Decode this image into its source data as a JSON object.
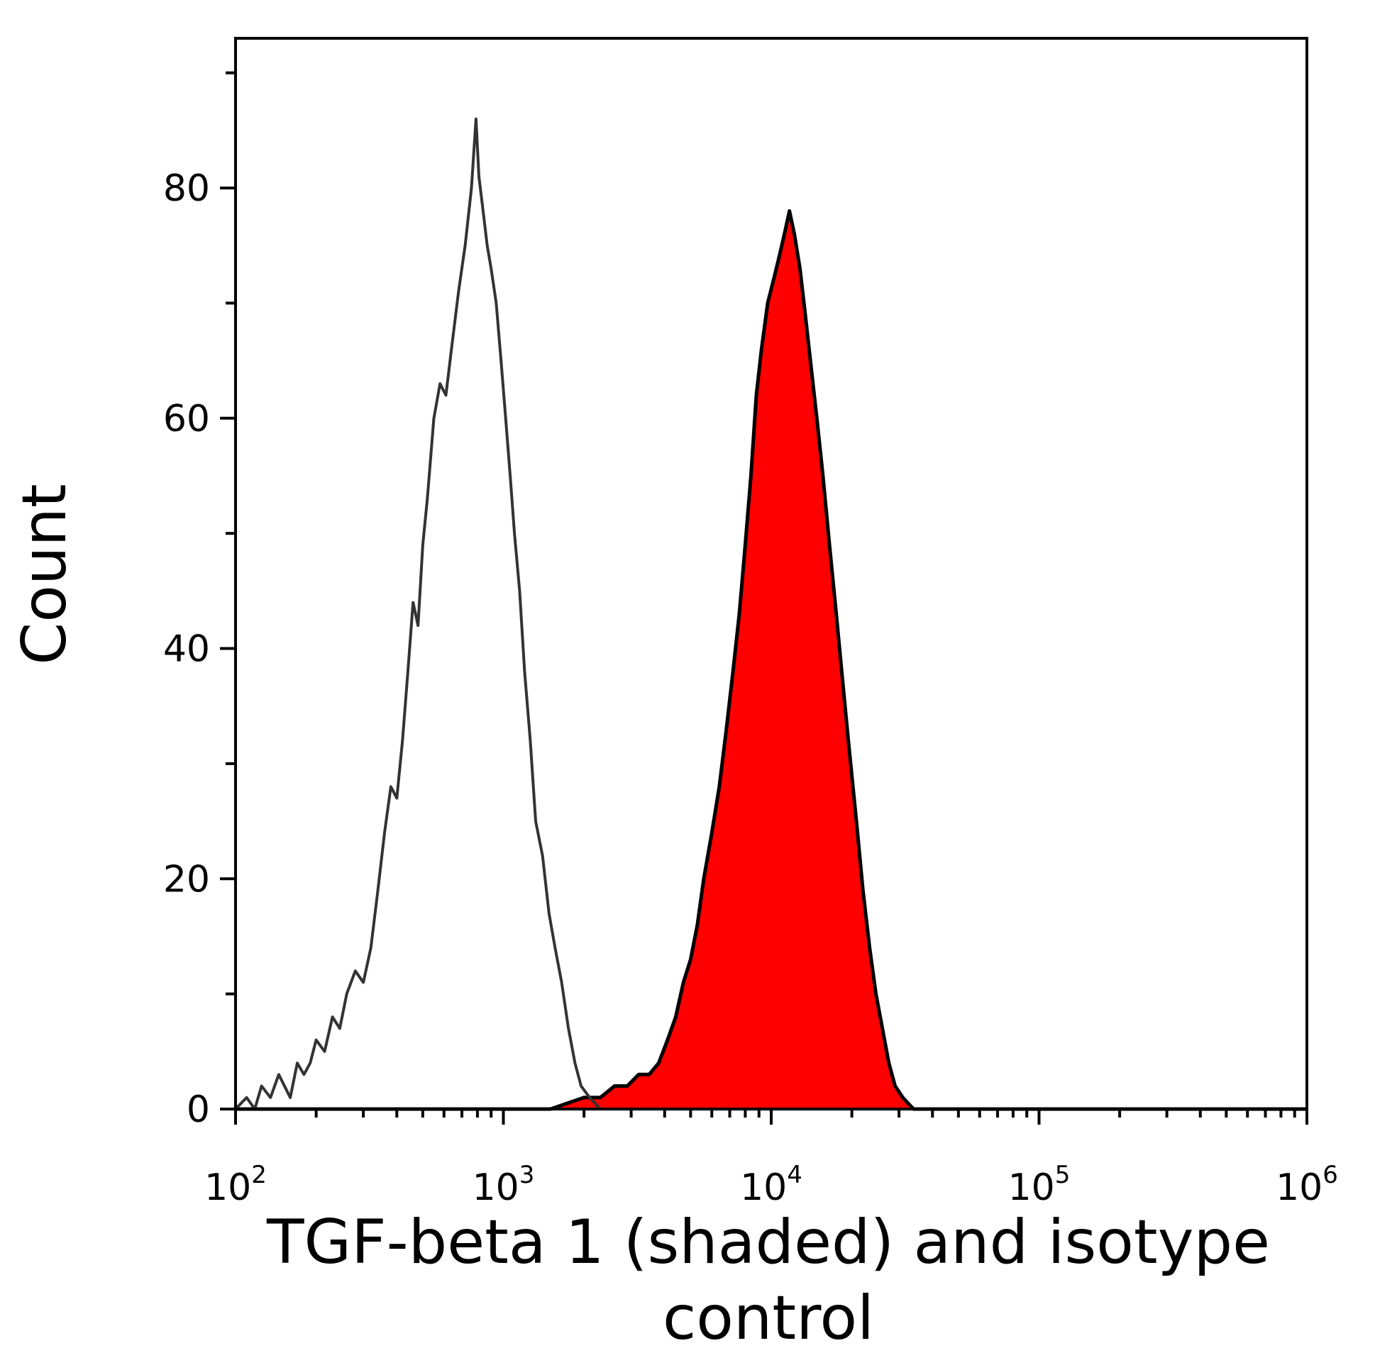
{
  "chart_data": {
    "type": "area",
    "title": "",
    "xlabel_lines": [
      "TGF-beta 1 (shaded) and isotype",
      "control"
    ],
    "ylabel": "Count",
    "x_scale": "log10",
    "xlim": [
      100,
      1000000
    ],
    "ylim": [
      0,
      93
    ],
    "x_ticks": [
      {
        "base": "10",
        "exp": "2"
      },
      {
        "base": "10",
        "exp": "3"
      },
      {
        "base": "10",
        "exp": "4"
      },
      {
        "base": "10",
        "exp": "5"
      },
      {
        "base": "10",
        "exp": "6"
      }
    ],
    "y_ticks": [
      {
        "value": 0,
        "label": "0"
      },
      {
        "value": 20,
        "label": "20"
      },
      {
        "value": 40,
        "label": "40"
      },
      {
        "value": 60,
        "label": "60"
      },
      {
        "value": 80,
        "label": "80"
      }
    ],
    "grid": false,
    "legend": "none",
    "series": [
      {
        "role": "isotype control (unshaded outline)",
        "style": "line",
        "color": "#333333",
        "points": [
          [
            100,
            0
          ],
          [
            110,
            1
          ],
          [
            118,
            0
          ],
          [
            125,
            2
          ],
          [
            135,
            1
          ],
          [
            145,
            3
          ],
          [
            160,
            1
          ],
          [
            170,
            4
          ],
          [
            180,
            3
          ],
          [
            190,
            4
          ],
          [
            200,
            6
          ],
          [
            215,
            5
          ],
          [
            230,
            8
          ],
          [
            245,
            7
          ],
          [
            260,
            10
          ],
          [
            280,
            12
          ],
          [
            300,
            11
          ],
          [
            320,
            14
          ],
          [
            340,
            19
          ],
          [
            360,
            24
          ],
          [
            380,
            28
          ],
          [
            400,
            27
          ],
          [
            420,
            32
          ],
          [
            440,
            38
          ],
          [
            460,
            44
          ],
          [
            480,
            42
          ],
          [
            500,
            49
          ],
          [
            520,
            53
          ],
          [
            550,
            60
          ],
          [
            580,
            63
          ],
          [
            610,
            62
          ],
          [
            640,
            66
          ],
          [
            680,
            71
          ],
          [
            720,
            75
          ],
          [
            760,
            80
          ],
          [
            790,
            86
          ],
          [
            810,
            81
          ],
          [
            840,
            78
          ],
          [
            870,
            75
          ],
          [
            900,
            73
          ],
          [
            940,
            70
          ],
          [
            980,
            65
          ],
          [
            1020,
            60
          ],
          [
            1060,
            55
          ],
          [
            1100,
            50
          ],
          [
            1150,
            45
          ],
          [
            1200,
            38
          ],
          [
            1260,
            32
          ],
          [
            1320,
            25
          ],
          [
            1400,
            22
          ],
          [
            1480,
            17
          ],
          [
            1560,
            14
          ],
          [
            1650,
            11
          ],
          [
            1750,
            7
          ],
          [
            1850,
            4
          ],
          [
            1950,
            2
          ],
          [
            2100,
            1
          ],
          [
            2300,
            0
          ],
          [
            3000,
            0
          ],
          [
            5000,
            0
          ],
          [
            8000,
            0
          ],
          [
            12000,
            0
          ],
          [
            20000,
            0
          ],
          [
            40000,
            0
          ],
          [
            100000,
            0
          ],
          [
            1000000,
            0
          ]
        ]
      },
      {
        "role": "TGF-beta 1 (shaded)",
        "style": "filled",
        "fill": "#ff0000",
        "color": "#000000",
        "points": [
          [
            100,
            0
          ],
          [
            500,
            0
          ],
          [
            1000,
            0
          ],
          [
            1500,
            0
          ],
          [
            2000,
            1
          ],
          [
            2300,
            1
          ],
          [
            2600,
            2
          ],
          [
            2900,
            2
          ],
          [
            3200,
            3
          ],
          [
            3500,
            3
          ],
          [
            3800,
            4
          ],
          [
            4100,
            6
          ],
          [
            4400,
            8
          ],
          [
            4700,
            11
          ],
          [
            5000,
            13
          ],
          [
            5300,
            16
          ],
          [
            5600,
            20
          ],
          [
            6000,
            24
          ],
          [
            6400,
            28
          ],
          [
            6800,
            33
          ],
          [
            7200,
            38
          ],
          [
            7600,
            43
          ],
          [
            8000,
            49
          ],
          [
            8400,
            55
          ],
          [
            8800,
            62
          ],
          [
            9200,
            66
          ],
          [
            9700,
            70
          ],
          [
            10200,
            72
          ],
          [
            10700,
            74
          ],
          [
            11200,
            76
          ],
          [
            11700,
            78
          ],
          [
            12200,
            76
          ],
          [
            12800,
            73
          ],
          [
            13400,
            69
          ],
          [
            14000,
            65
          ],
          [
            14800,
            60
          ],
          [
            15600,
            55
          ],
          [
            16500,
            49
          ],
          [
            17500,
            43
          ],
          [
            18500,
            37
          ],
          [
            19600,
            31
          ],
          [
            20800,
            25
          ],
          [
            22000,
            19
          ],
          [
            23300,
            14
          ],
          [
            24600,
            10
          ],
          [
            26000,
            7
          ],
          [
            27500,
            4
          ],
          [
            29000,
            2
          ],
          [
            31000,
            1
          ],
          [
            34000,
            0
          ],
          [
            40000,
            0
          ],
          [
            60000,
            0
          ],
          [
            100000,
            0
          ],
          [
            1000000,
            0
          ]
        ]
      }
    ]
  }
}
